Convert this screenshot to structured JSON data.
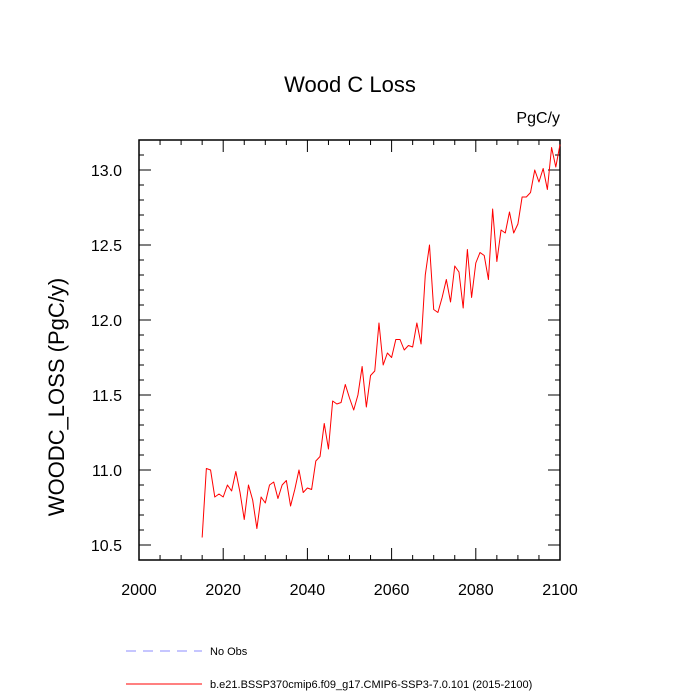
{
  "chart_data": {
    "type": "line",
    "title": "Wood C Loss",
    "units_label": "PgC/y",
    "xlabel": "",
    "ylabel": "WOODC_LOSS  (PgC/y)",
    "xlim": [
      2000,
      2100
    ],
    "ylim": [
      10.4,
      13.2
    ],
    "x_ticks": [
      2000,
      2020,
      2040,
      2060,
      2080,
      2100
    ],
    "x_tick_labels": [
      "2000",
      "2020",
      "2040",
      "2060",
      "2080",
      "2100"
    ],
    "y_ticks": [
      10.5,
      11.0,
      11.5,
      12.0,
      12.5,
      13.0
    ],
    "y_tick_labels": [
      "10.5",
      "11.0",
      "11.5",
      "12.0",
      "12.5",
      "13.0"
    ],
    "grid": false,
    "legend_position": "bottom-left",
    "series": [
      {
        "name": "b.e21.BSSP370cmip6.f09_g17.CMIP6-SSP3-7.0.101 (2015-2100)",
        "color": "#ff0000",
        "style": "solid",
        "x": [
          2015,
          2016,
          2017,
          2018,
          2019,
          2020,
          2021,
          2022,
          2023,
          2024,
          2025,
          2026,
          2027,
          2028,
          2029,
          2030,
          2031,
          2032,
          2033,
          2034,
          2035,
          2036,
          2037,
          2038,
          2039,
          2040,
          2041,
          2042,
          2043,
          2044,
          2045,
          2046,
          2047,
          2048,
          2049,
          2050,
          2051,
          2052,
          2053,
          2054,
          2055,
          2056,
          2057,
          2058,
          2059,
          2060,
          2061,
          2062,
          2063,
          2064,
          2065,
          2066,
          2067,
          2068,
          2069,
          2070,
          2071,
          2072,
          2073,
          2074,
          2075,
          2076,
          2077,
          2078,
          2079,
          2080,
          2081,
          2082,
          2083,
          2084,
          2085,
          2086,
          2087,
          2088,
          2089,
          2090,
          2091,
          2092,
          2093,
          2094,
          2095,
          2096,
          2097,
          2098,
          2099,
          2100
        ],
        "values": [
          10.55,
          11.01,
          11.0,
          10.82,
          10.84,
          10.82,
          10.9,
          10.86,
          10.99,
          10.85,
          10.67,
          10.9,
          10.8,
          10.61,
          10.82,
          10.78,
          10.9,
          10.92,
          10.81,
          10.9,
          10.93,
          10.76,
          10.87,
          11.0,
          10.85,
          10.88,
          10.87,
          11.06,
          11.09,
          11.31,
          11.14,
          11.46,
          11.44,
          11.45,
          11.57,
          11.48,
          11.4,
          11.5,
          11.69,
          11.42,
          11.63,
          11.66,
          11.98,
          11.7,
          11.78,
          11.75,
          11.87,
          11.87,
          11.8,
          11.83,
          11.82,
          11.98,
          11.84,
          12.3,
          12.5,
          12.07,
          12.05,
          12.15,
          12.27,
          12.12,
          12.36,
          12.32,
          12.08,
          12.47,
          12.15,
          12.38,
          12.45,
          12.43,
          12.27,
          12.74,
          12.39,
          12.6,
          12.58,
          12.72,
          12.58,
          12.64,
          12.82,
          12.82,
          12.85,
          13.0,
          12.92,
          13.01,
          12.87,
          13.15,
          13.02,
          13.17
        ]
      }
    ],
    "legend": [
      {
        "label": "No Obs",
        "color": "#8c8cff",
        "style": "dashed"
      },
      {
        "label": "b.e21.BSSP370cmip6.f09_g17.CMIP6-SSP3-7.0.101 (2015-2100)",
        "color": "#ff0000",
        "style": "solid"
      }
    ]
  }
}
